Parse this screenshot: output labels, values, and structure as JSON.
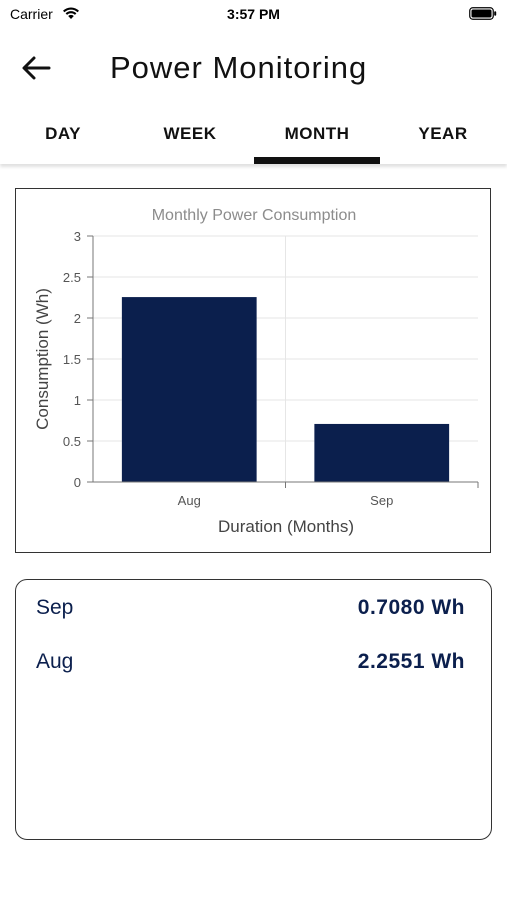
{
  "status_bar": {
    "carrier": "Carrier",
    "time": "3:57 PM",
    "icons": [
      "wifi-icon",
      "battery-icon"
    ]
  },
  "header": {
    "title": "Power Monitoring",
    "back_icon": "arrow-left-icon"
  },
  "tabs": [
    {
      "label": "DAY",
      "selected": false
    },
    {
      "label": "WEEK",
      "selected": false
    },
    {
      "label": "MONTH",
      "selected": true
    },
    {
      "label": "YEAR",
      "selected": false
    }
  ],
  "colors": {
    "bar": "#0b1f4d",
    "value_text": "#0b1f4d",
    "title_text": "#8c8c8c",
    "axis_text": "#555555",
    "grid": "#e6e6e6"
  },
  "chart_data": {
    "type": "bar",
    "title": "Monthly Power Consumption",
    "xlabel": "Duration (Months)",
    "ylabel": "Consumption (Wh)",
    "categories": [
      "Aug",
      "Sep"
    ],
    "values": [
      2.2551,
      0.708
    ],
    "ylim": [
      0,
      3
    ],
    "yticks": [
      "0",
      "0.5",
      "1",
      "1.5",
      "2",
      "2.5",
      "3"
    ],
    "grid": true
  },
  "summary": {
    "rows": [
      {
        "month": "Sep",
        "value": "0.7080 Wh"
      },
      {
        "month": "Aug",
        "value": "2.2551 Wh"
      }
    ]
  }
}
